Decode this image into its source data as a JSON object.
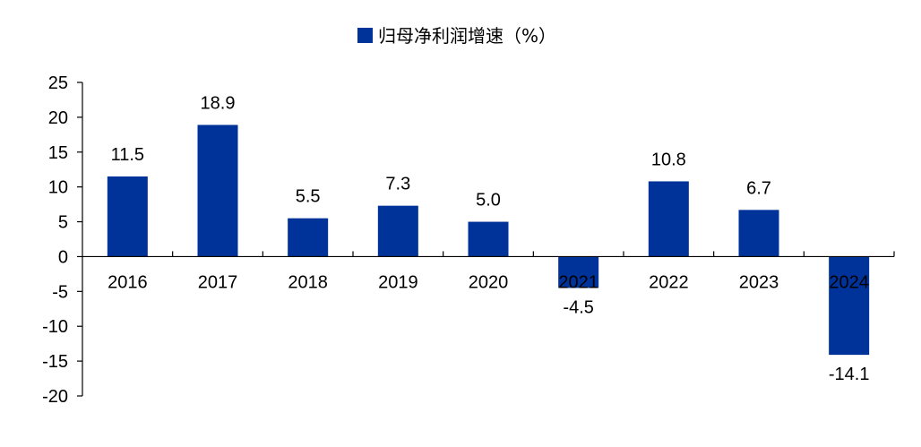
{
  "chart_data": {
    "type": "bar",
    "categories": [
      "2016",
      "2017",
      "2018",
      "2019",
      "2020",
      "2021",
      "2022",
      "2023",
      "2024"
    ],
    "values": [
      11.5,
      18.9,
      5.5,
      7.3,
      5.0,
      -4.5,
      10.8,
      6.7,
      -14.1
    ],
    "value_labels": [
      "11.5",
      "18.9",
      "5.5",
      "7.3",
      "5.0",
      "-4.5",
      "10.8",
      "6.7",
      "-14.1"
    ],
    "series": [
      {
        "name": "归母净利润增速（%）",
        "values": [
          11.5,
          18.9,
          5.5,
          7.3,
          5.0,
          -4.5,
          10.8,
          6.7,
          -14.1
        ]
      }
    ],
    "title": "",
    "xlabel": "",
    "ylabel": "",
    "ylim": [
      -20,
      25
    ],
    "yticks": [
      "25",
      "20",
      "15",
      "10",
      "5",
      "0",
      "-5",
      "-10",
      "-15",
      "-20"
    ],
    "grid": false,
    "legend_position": "top-center",
    "bar_color": "#003399"
  }
}
